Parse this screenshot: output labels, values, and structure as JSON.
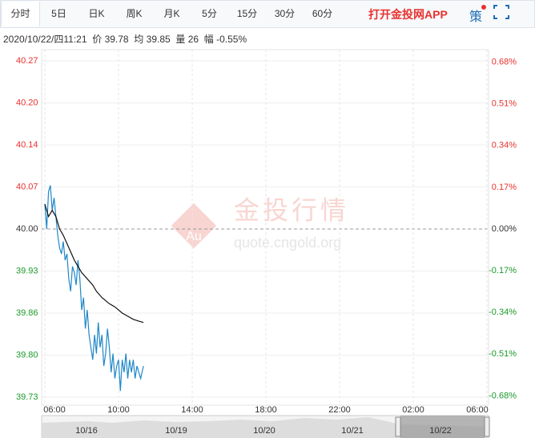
{
  "tabs": [
    "分时",
    "5日",
    "日K",
    "周K",
    "月K",
    "5分",
    "15分",
    "30分",
    "60分"
  ],
  "active_tab": 0,
  "app_link": "打开金投网APP",
  "strategy": "策",
  "info": {
    "time": "2020/10/22/四11:21",
    "price_label": "价",
    "price": "39.78",
    "avg_label": "均",
    "avg": "39.85",
    "vol_label": "量",
    "vol": "26",
    "change_label": "幅",
    "change": "-0.55%"
  },
  "watermark": {
    "logo": "Au",
    "name": "金投行情",
    "url": "quote.cngold.org"
  },
  "chart_data": {
    "type": "line",
    "grid": true,
    "up_color": "#e8312f",
    "down_color": "#1a9a2a",
    "flat_color": "#333333",
    "xlim": [
      6,
      30
    ],
    "xticks": [
      {
        "value": 6,
        "label": "06:00"
      },
      {
        "value": 10,
        "label": "10:00"
      },
      {
        "value": 14,
        "label": "14:00"
      },
      {
        "value": 18,
        "label": "18:00"
      },
      {
        "value": 22,
        "label": "22:00"
      },
      {
        "value": 26,
        "label": "02:00"
      },
      {
        "value": 30,
        "label": "06:00"
      }
    ],
    "ylim": [
      39.73,
      40.27
    ],
    "yticks": [
      {
        "value": 40.27,
        "label": "40.27"
      },
      {
        "value": 40.2025,
        "label": "40.20"
      },
      {
        "value": 40.135,
        "label": "40.14"
      },
      {
        "value": 40.0675,
        "label": "40.07"
      },
      {
        "value": 40,
        "label": "40.00"
      },
      {
        "value": 39.9325,
        "label": "39.93"
      },
      {
        "value": 39.865,
        "label": "39.86"
      },
      {
        "value": 39.7975,
        "label": "39.80"
      },
      {
        "value": 39.73,
        "label": "39.73"
      }
    ],
    "y2lim": [
      -0.68,
      0.68
    ],
    "y2ticks": [
      {
        "value": 0.675,
        "label": "0.68%"
      },
      {
        "value": 0.50625,
        "label": "0.51%"
      },
      {
        "value": 0.3375,
        "label": "0.34%"
      },
      {
        "value": 0.16875,
        "label": "0.17%"
      },
      {
        "value": 0,
        "label": "0.00%"
      },
      {
        "value": -0.16875,
        "label": "-0.17%"
      },
      {
        "value": -0.3375,
        "label": "-0.34%"
      },
      {
        "value": -0.50625,
        "label": "-0.51%"
      },
      {
        "value": -0.675,
        "label": "-0.68%"
      }
    ],
    "series": [
      {
        "color": "#1f87c9",
        "x": [
          6,
          6.1,
          6.2,
          6.3,
          6.4,
          6.5,
          6.6,
          6.7,
          6.8,
          6.9,
          7,
          7.1,
          7.2,
          7.3,
          7.4,
          7.5,
          7.6,
          7.7,
          7.8,
          7.9,
          8,
          8.1,
          8.2,
          8.3,
          8.4,
          8.5,
          8.6,
          8.7,
          8.8,
          8.9,
          9,
          9.1,
          9.2,
          9.3,
          9.4,
          9.5,
          9.6,
          9.7,
          9.8,
          9.9,
          10,
          10.1,
          10.2,
          10.3,
          10.4,
          10.5,
          10.6,
          10.7,
          10.8,
          10.9,
          11,
          11.1,
          11.2,
          11.35
        ],
        "values": [
          40.04,
          40,
          40.06,
          40.07,
          40.03,
          40.05,
          40.02,
          39.99,
          39.97,
          39.96,
          39.98,
          39.95,
          39.96,
          39.92,
          39.9,
          39.94,
          39.93,
          39.91,
          39.95,
          39.92,
          39.87,
          39.89,
          39.84,
          39.87,
          39.83,
          39.81,
          39.79,
          39.83,
          39.8,
          39.85,
          39.81,
          39.83,
          39.78,
          39.8,
          39.84,
          39.81,
          39.77,
          39.8,
          39.76,
          39.78,
          39.79,
          39.74,
          39.79,
          39.77,
          39.8,
          39.76,
          39.79,
          39.77,
          39.79,
          39.76,
          39.78,
          39.77,
          39.76,
          39.78
        ]
      },
      {
        "color": "#111111",
        "x": [
          6,
          6.2,
          6.4,
          6.6,
          6.8,
          7,
          7.3,
          7.6,
          7.8,
          8,
          8.3,
          8.6,
          8.8,
          9.1,
          9.5,
          9.8,
          10.2,
          10.5,
          10.8,
          11.1,
          11.35
        ],
        "values": [
          40.04,
          40.02,
          40.03,
          40.02,
          40,
          39.99,
          39.97,
          39.95,
          39.94,
          39.93,
          39.92,
          39.91,
          39.9,
          39.89,
          39.88,
          39.875,
          39.865,
          39.86,
          39.855,
          39.852,
          39.85
        ]
      }
    ],
    "navigator_labels": [
      "10/16",
      "10/19",
      "10/20",
      "10/21",
      "10/22"
    ]
  }
}
